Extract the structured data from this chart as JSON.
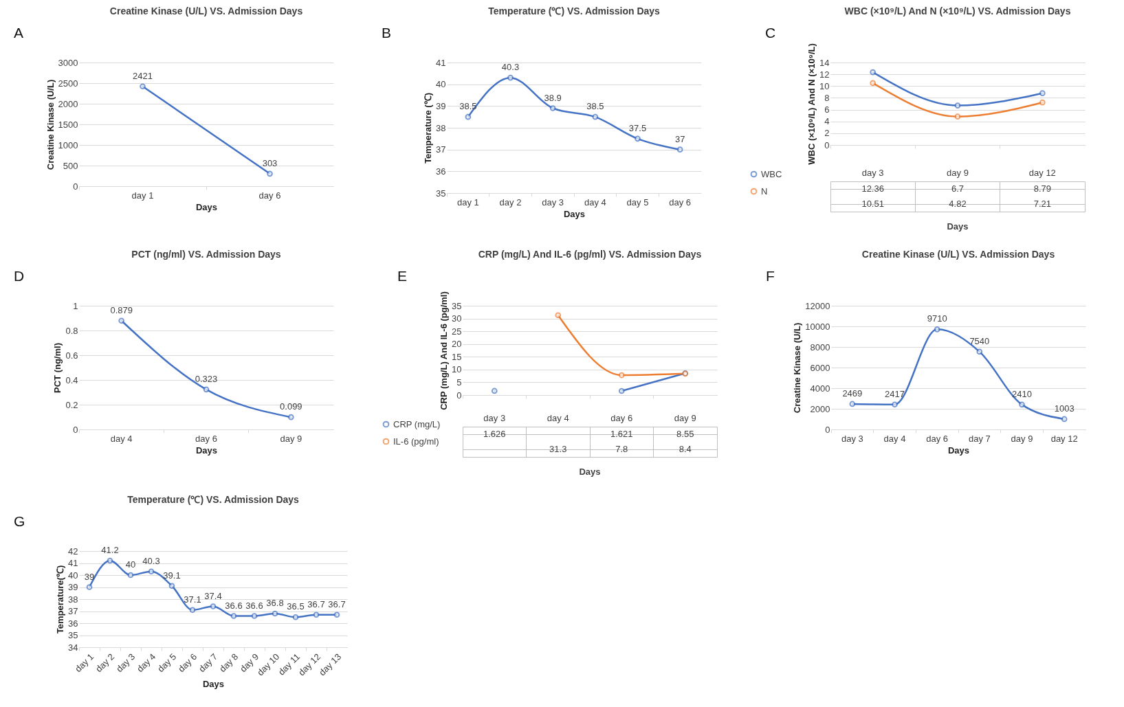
{
  "chart_data": [
    {
      "type": "line",
      "title": "Creatine Kinase  (U/L) VS. Admission Days",
      "xlabel": "Days",
      "ylabel": "Creatine Kinase (U/L)",
      "annotations": [
        "A"
      ],
      "categories": [
        "day 1",
        "day 6"
      ],
      "values": [
        2421,
        303
      ],
      "color": "#4472c4",
      "ylim": [
        0,
        3000
      ],
      "yticks": [
        0,
        500,
        1000,
        1500,
        2000,
        2500,
        3000
      ],
      "grid": "y",
      "marker": "circle",
      "data_labels": true
    },
    {
      "type": "line",
      "title": "Temperature (℃) VS. Admission Days",
      "xlabel": "Days",
      "ylabel": "Temperature (℃)",
      "annotations": [
        "B"
      ],
      "categories": [
        "day 1",
        "day 2",
        "day 3",
        "day 4",
        "day 5",
        "day 6"
      ],
      "values": [
        38.5,
        40.3,
        38.9,
        38.5,
        37.5,
        37
      ],
      "color": "#4472c4",
      "ylim": [
        35,
        41
      ],
      "yticks": [
        35,
        36,
        37,
        38,
        39,
        40,
        41
      ],
      "grid": "y",
      "marker": "circle",
      "data_labels": true
    },
    {
      "type": "line",
      "title": "WBC (×10⁹/L) And N (×10⁹/L) VS. Admission Days",
      "xlabel": "Days",
      "ylabel": "WBC (×10⁹/L) And N (×10⁹/L)",
      "annotations": [
        "C"
      ],
      "categories": [
        "day 3",
        "day 9",
        "day 12"
      ],
      "series": [
        {
          "name": "WBC",
          "color": "#4472c4",
          "values": [
            12.36,
            6.7,
            8.79
          ]
        },
        {
          "name": "N",
          "color": "#ed7d31",
          "values": [
            10.51,
            4.82,
            7.21
          ]
        }
      ],
      "ylim": [
        0,
        14
      ],
      "yticks": [
        0,
        2,
        4,
        6,
        8,
        10,
        12,
        14
      ],
      "grid": "y",
      "marker": "circle",
      "data_labels": true,
      "legend": "bottom left"
    },
    {
      "type": "line",
      "title": "PCT (ng/ml) VS. Admission Days",
      "xlabel": "Days",
      "ylabel": "PCT (ng/ml)",
      "annotations": [
        "D"
      ],
      "categories": [
        "day 4",
        "day 6",
        "day 9"
      ],
      "values": [
        0.879,
        0.323,
        0.099
      ],
      "color": "#4472c4",
      "ylim": [
        0,
        1
      ],
      "yticks": [
        0,
        0.2,
        0.4,
        0.6,
        0.8,
        1
      ],
      "grid": "y",
      "marker": "circle",
      "data_labels": true
    },
    {
      "type": "line",
      "title": "CRP (mg/L) And IL-6 (pg/ml) VS. Admission Days",
      "xlabel": "Days",
      "ylabel": "CRP (mg/L) And IL-6 (pg/ml)",
      "annotations": [
        "E"
      ],
      "categories": [
        "day 3",
        "day 4",
        "day 6",
        "day 9"
      ],
      "series": [
        {
          "name": "CRP (mg/L)",
          "color": "#4472c4",
          "values": [
            1.626,
            null,
            1.621,
            8.55
          ]
        },
        {
          "name": "IL-6 (pg/ml)",
          "color": "#ed7d31",
          "values": [
            null,
            31.3,
            7.8,
            8.4
          ]
        }
      ],
      "ylim": [
        0,
        35
      ],
      "yticks": [
        0,
        5,
        10,
        15,
        20,
        25,
        30,
        35
      ],
      "grid": "y",
      "marker": "circle",
      "data_labels": true,
      "legend": "bottom left"
    },
    {
      "type": "line",
      "title": "Creatine Kinase  (U/L) VS. Admission Days",
      "xlabel": "Days",
      "ylabel": "Creatine Kinase (U/L)",
      "annotations": [
        "F"
      ],
      "categories": [
        "day 3",
        "day 4",
        "day 6",
        "day 7",
        "day 9",
        "day 12"
      ],
      "values": [
        2469,
        2417,
        9710,
        7540,
        2410,
        1003
      ],
      "color": "#4472c4",
      "ylim": [
        0,
        12000
      ],
      "yticks": [
        0,
        2000,
        4000,
        6000,
        8000,
        10000,
        12000
      ],
      "grid": "y",
      "marker": "circle",
      "data_labels": true
    },
    {
      "type": "line",
      "title": "Temperature (℃) VS. Admission Days",
      "xlabel": "Days",
      "ylabel": "Temperature(℃)",
      "annotations": [
        "G"
      ],
      "categories": [
        "day 1",
        "day 2",
        "day 3",
        "day 4",
        "day 5",
        "day 6",
        "day 7",
        "day 8",
        "day 9",
        "day 10",
        "day 11",
        "day 12",
        "day 13"
      ],
      "values": [
        39,
        41.2,
        40,
        40.3,
        39.1,
        37.1,
        37.4,
        36.6,
        36.6,
        36.8,
        36.5,
        36.7,
        36.7
      ],
      "color": "#4472c4",
      "ylim": [
        34,
        42
      ],
      "yticks": [
        34,
        35,
        36,
        37,
        38,
        39,
        40,
        41,
        42
      ],
      "grid": "y",
      "marker": "circle",
      "data_labels": true
    }
  ]
}
